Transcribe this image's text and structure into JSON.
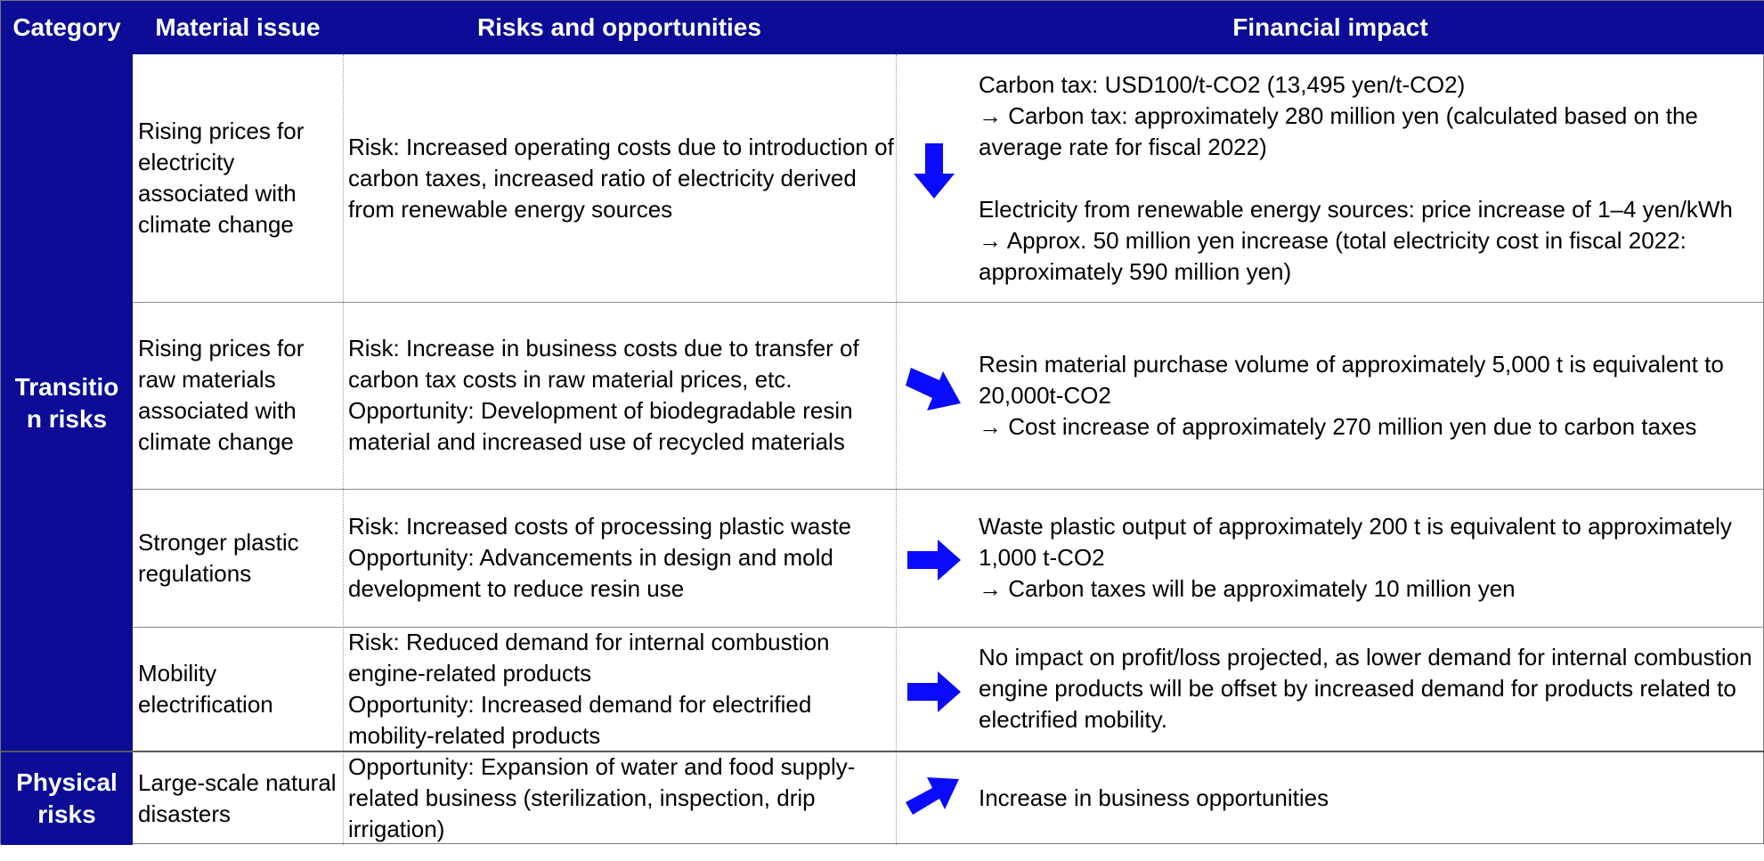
{
  "header": {
    "category": "Category",
    "material_issue": "Material issue",
    "risks_opportunities": "Risks and opportunities",
    "financial_impact": "Financial impact"
  },
  "categories": [
    {
      "label": "Transition risks",
      "display": "Transitio\nn risks"
    },
    {
      "label": "Physical risks",
      "display": "Physical\nrisks"
    }
  ],
  "rows": [
    {
      "issue": "Rising prices for electricity associated with climate change",
      "risks": "Risk: Increased operating costs due to introduction of carbon taxes, increased ratio of electricity derived from renewable energy sources",
      "impact": "Carbon tax: USD100/t-CO2 (13,495 yen/t-CO2)\n→ Carbon tax: approximately 280 million yen (calculated based on the average rate for fiscal 2022)\n\nElectricity from renewable energy sources: price increase of 1–4 yen/kWh\n→ Approx. 50 million yen increase (total electricity cost in fiscal 2022: approximately 590 million yen)",
      "arrow": "arrow-down-icon"
    },
    {
      "issue": "Rising prices for raw materials associated with climate change",
      "risks": "Risk: Increase in business costs due to transfer of carbon tax costs in raw material prices, etc.\nOpportunity: Development of biodegradable resin material and increased use of recycled materials",
      "impact": "Resin material purchase volume of approximately 5,000 t is equivalent to 20,000t-CO2\n→ Cost increase of approximately 270 million yen due to carbon taxes",
      "arrow": "arrow-down-right-icon"
    },
    {
      "issue": "Stronger plastic regulations",
      "risks": "Risk: Increased costs of processing plastic waste\nOpportunity: Advancements in design and mold development to reduce resin use",
      "impact": "Waste plastic output of approximately 200 t is equivalent to approximately 1,000 t-CO2\n→ Carbon taxes will be approximately 10 million yen",
      "arrow": "arrow-right-icon"
    },
    {
      "issue": "Mobility electrification",
      "risks": "Risk: Reduced demand for internal combustion engine-related products\nOpportunity: Increased demand for electrified mobility-related products",
      "impact": "No impact on profit/loss projected, as lower demand for internal combustion engine products will be offset by increased demand for products related to electrified mobility.",
      "arrow": "arrow-right-icon"
    },
    {
      "issue": "Large-scale natural disasters",
      "risks": "Opportunity: Expansion of water and food supply-related business (sterilization, inspection, drip irrigation)",
      "impact": "Increase in business opportunities",
      "arrow": "arrow-up-right-icon"
    }
  ],
  "colors": {
    "header_bg": "#0c0c97",
    "arrow": "#0a0aff"
  }
}
